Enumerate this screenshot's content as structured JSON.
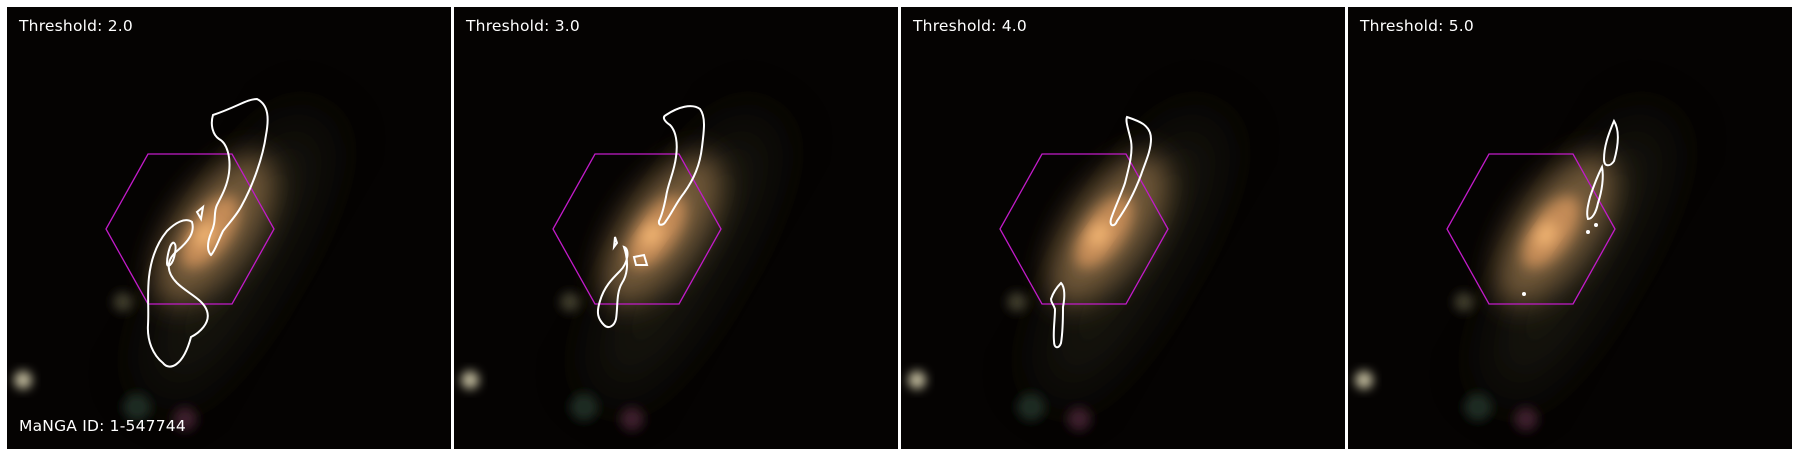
{
  "figure": {
    "panels": [
      {
        "threshold_label": "Threshold: 2.0"
      },
      {
        "threshold_label": "Threshold: 3.0"
      },
      {
        "threshold_label": "Threshold: 4.0"
      },
      {
        "threshold_label": "Threshold: 5.0"
      }
    ],
    "manga_id_label": "MaNGA ID: 1-547744",
    "colors": {
      "hexagon": "#c21bc9",
      "contour": "#ffffff",
      "galaxy_core": "#f4b874",
      "background": "#050302"
    }
  }
}
